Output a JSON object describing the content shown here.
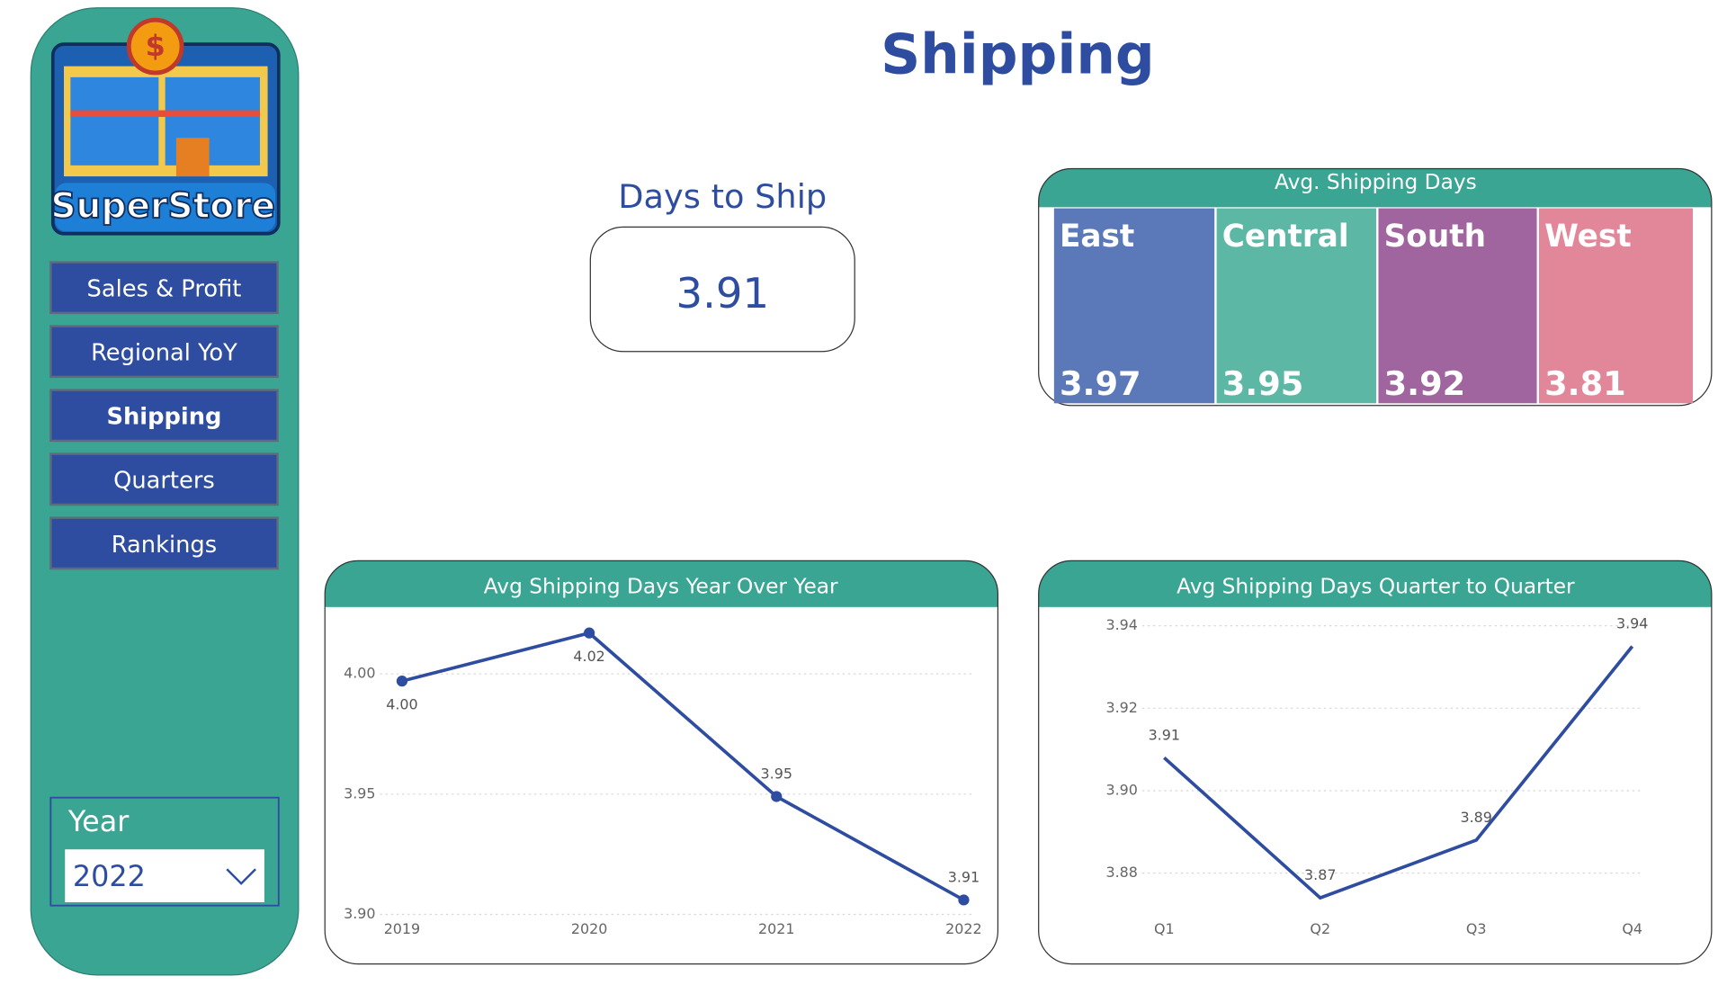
{
  "sidebar": {
    "logo": "SuperStore",
    "nav": [
      "Sales & Profit",
      "Regional YoY",
      "Shipping",
      "Quarters",
      "Rankings"
    ],
    "filter": {
      "label": "Year",
      "value": "2022"
    }
  },
  "header": {
    "title": "Shipping"
  },
  "kpi": {
    "label": "Days to Ship",
    "value": "3.91"
  },
  "chart_data": [
    {
      "type": "treemap",
      "title": "Avg. Shipping Days",
      "categories": [
        "East",
        "Central",
        "South",
        "West"
      ],
      "values": [
        3.97,
        3.95,
        3.92,
        3.81
      ],
      "colors": [
        "#5b78b9",
        "#5cb8a5",
        "#a0649f",
        "#e2879a"
      ]
    },
    {
      "type": "line",
      "title": "Avg Shipping Days Year Over Year",
      "categories": [
        "2019",
        "2020",
        "2021",
        "2022"
      ],
      "values": [
        3.997,
        4.017,
        3.949,
        3.906
      ],
      "value_labels": [
        "4.00",
        "4.02",
        "3.95",
        "3.91"
      ],
      "color": "#2e4da0",
      "markers": true,
      "ylim": [
        3.9,
        4.02
      ],
      "yticks": [
        {
          "value": 3.9,
          "label": "3.90"
        },
        3.95,
        {
          "value": 4,
          "label": "4.00"
        }
      ],
      "grid": true
    },
    {
      "type": "line",
      "title": "Avg Shipping Days Quarter to Quarter",
      "categories": [
        "Q1",
        "Q2",
        "Q3",
        "Q4"
      ],
      "values": [
        3.908,
        3.874,
        3.888,
        3.935
      ],
      "value_labels": [
        "3.91",
        "3.87",
        "3.89",
        "3.94"
      ],
      "color": "#2e4da0",
      "markers": false,
      "ylim": [
        3.87,
        3.94
      ],
      "yticks": [
        3.88,
        {
          "value": 3.9,
          "label": "3.90"
        },
        3.92,
        3.94
      ],
      "grid": true
    }
  ]
}
